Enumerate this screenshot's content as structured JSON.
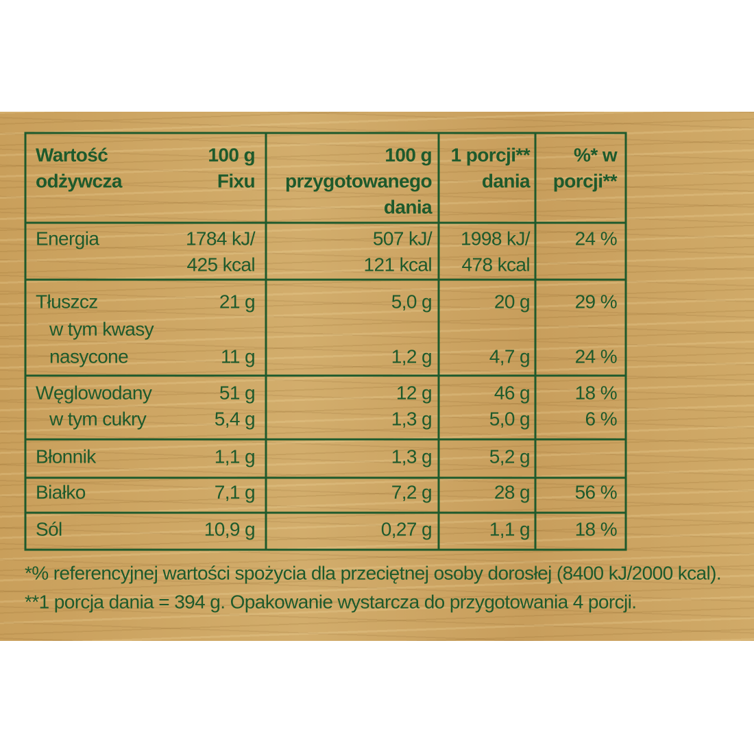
{
  "table": {
    "header": [
      [
        "Wartość",
        "odżywcza"
      ],
      [
        "100 g",
        "Fixu"
      ],
      [
        "100 g",
        "przygotowanego",
        "dania"
      ],
      [
        "1 porcji**",
        "dania"
      ],
      [
        "%* w",
        "porcji**"
      ]
    ],
    "groups": [
      [
        {
          "name": "Energia",
          "fixu": "1784 kJ/",
          "prepared": "507 kJ/",
          "portion": "1998 kJ/",
          "percent": "24 %"
        },
        {
          "fixu": "425 kcal",
          "prepared": "121 kcal",
          "portion": "478 kcal"
        }
      ],
      [
        {
          "name": "Tłuszcz",
          "fixu": "21 g",
          "prepared": "5,0 g",
          "portion": "20 g",
          "percent": "29 %"
        },
        {
          "name": "w tym kwasy"
        },
        {
          "name": "nasycone",
          "fixu": "11 g",
          "prepared": "1,2 g",
          "portion": "4,7 g",
          "percent": "24 %"
        }
      ],
      [
        {
          "name": "Węglowodany",
          "fixu": "51 g",
          "prepared": "12 g",
          "portion": "46 g",
          "percent": "18 %"
        },
        {
          "name": "w tym cukry",
          "fixu": "5,4 g",
          "prepared": "1,3 g",
          "portion": "5,0 g",
          "percent": "6 %"
        }
      ],
      [
        {
          "name": "Błonnik",
          "fixu": "1,1 g",
          "prepared": "1,3 g",
          "portion": "5,2 g"
        }
      ],
      [
        {
          "name": "Białko",
          "fixu": "7,1 g",
          "prepared": "7,2 g",
          "portion": "28 g",
          "percent": "56 %"
        }
      ],
      [
        {
          "name": "Sól",
          "fixu": "10,9 g",
          "prepared": "0,27 g",
          "portion": "1,1 g",
          "percent": "18 %"
        }
      ]
    ]
  },
  "footnotes": [
    "*% referencyjnej wartości spożycia dla przeciętnej osoby dorosłej (8400 kJ/2000 kcal).",
    "**1 porcja dania = 394 g. Opakowanie wystarcza do przygotowania 4 porcji."
  ]
}
